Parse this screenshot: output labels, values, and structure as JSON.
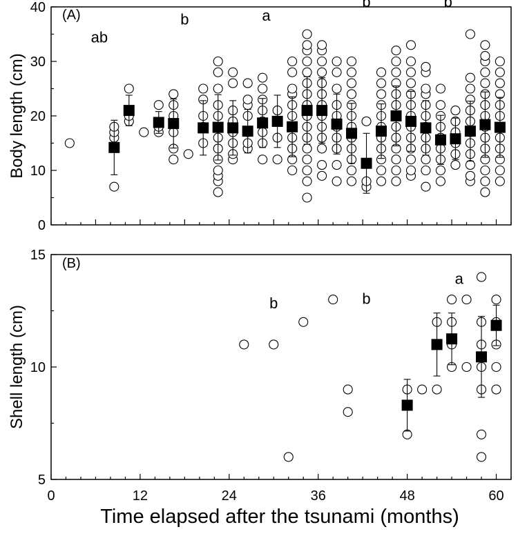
{
  "figure": {
    "xlabel": "Time elapsed after the tsunami (months)"
  },
  "chart_data": [
    {
      "type": "scatter",
      "panel_label": "(A)",
      "ylabel": "Body length (cm)",
      "ylim": [
        0,
        40
      ],
      "yticks": [
        "0",
        "10",
        "20",
        "30",
        "40"
      ],
      "xlim": [
        0,
        60
      ],
      "grid": false,
      "annotations": [
        {
          "text": "ab",
          "x": 6.5,
          "y": 33.5
        },
        {
          "text": "b",
          "x": 18.0,
          "y": 36.8
        },
        {
          "text": "a",
          "x": 29.0,
          "y": 37.5
        },
        {
          "text": "b",
          "x": 42.5,
          "y": 40.0
        },
        {
          "text": "b",
          "x": 53.5,
          "y": 40.0
        }
      ],
      "points": [
        {
          "x": 2.5,
          "y": 15
        },
        {
          "x": 8.5,
          "y": 7
        },
        {
          "x": 8.5,
          "y": 16
        },
        {
          "x": 8.5,
          "y": 17
        },
        {
          "x": 8.5,
          "y": 18
        },
        {
          "x": 10.5,
          "y": 19
        },
        {
          "x": 10.5,
          "y": 20
        },
        {
          "x": 10.5,
          "y": 25
        },
        {
          "x": 12.5,
          "y": 17
        },
        {
          "x": 14.5,
          "y": 17
        },
        {
          "x": 14.5,
          "y": 18
        },
        {
          "x": 14.5,
          "y": 22
        },
        {
          "x": 16.5,
          "y": 12
        },
        {
          "x": 16.5,
          "y": 14
        },
        {
          "x": 16.5,
          "y": 17
        },
        {
          "x": 16.5,
          "y": 20
        },
        {
          "x": 16.5,
          "y": 22
        },
        {
          "x": 16.5,
          "y": 24
        },
        {
          "x": 18.5,
          "y": 13
        },
        {
          "x": 20.5,
          "y": 15
        },
        {
          "x": 20.5,
          "y": 18
        },
        {
          "x": 20.5,
          "y": 20
        },
        {
          "x": 20.5,
          "y": 23
        },
        {
          "x": 20.5,
          "y": 25
        },
        {
          "x": 22.5,
          "y": 6
        },
        {
          "x": 22.5,
          "y": 8
        },
        {
          "x": 22.5,
          "y": 9
        },
        {
          "x": 22.5,
          "y": 10
        },
        {
          "x": 22.5,
          "y": 12
        },
        {
          "x": 22.5,
          "y": 14
        },
        {
          "x": 22.5,
          "y": 16
        },
        {
          "x": 22.5,
          "y": 18
        },
        {
          "x": 22.5,
          "y": 20
        },
        {
          "x": 22.5,
          "y": 22
        },
        {
          "x": 22.5,
          "y": 25
        },
        {
          "x": 22.5,
          "y": 28
        },
        {
          "x": 22.5,
          "y": 30
        },
        {
          "x": 24.5,
          "y": 12
        },
        {
          "x": 24.5,
          "y": 13
        },
        {
          "x": 24.5,
          "y": 15
        },
        {
          "x": 24.5,
          "y": 17
        },
        {
          "x": 24.5,
          "y": 19
        },
        {
          "x": 24.5,
          "y": 21
        },
        {
          "x": 24.5,
          "y": 26
        },
        {
          "x": 24.5,
          "y": 28
        },
        {
          "x": 26.5,
          "y": 14
        },
        {
          "x": 26.5,
          "y": 15
        },
        {
          "x": 26.5,
          "y": 17
        },
        {
          "x": 26.5,
          "y": 20
        },
        {
          "x": 26.5,
          "y": 22
        },
        {
          "x": 26.5,
          "y": 23
        },
        {
          "x": 26.5,
          "y": 26
        },
        {
          "x": 28.5,
          "y": 12
        },
        {
          "x": 28.5,
          "y": 15
        },
        {
          "x": 28.5,
          "y": 17
        },
        {
          "x": 28.5,
          "y": 19
        },
        {
          "x": 28.5,
          "y": 21
        },
        {
          "x": 28.5,
          "y": 23
        },
        {
          "x": 28.5,
          "y": 25
        },
        {
          "x": 28.5,
          "y": 27
        },
        {
          "x": 30.5,
          "y": 12
        },
        {
          "x": 30.5,
          "y": 16
        },
        {
          "x": 30.5,
          "y": 19
        },
        {
          "x": 30.5,
          "y": 21
        },
        {
          "x": 32.5,
          "y": 10
        },
        {
          "x": 32.5,
          "y": 12
        },
        {
          "x": 32.5,
          "y": 14
        },
        {
          "x": 32.5,
          "y": 16
        },
        {
          "x": 32.5,
          "y": 18
        },
        {
          "x": 32.5,
          "y": 20
        },
        {
          "x": 32.5,
          "y": 22
        },
        {
          "x": 32.5,
          "y": 24
        },
        {
          "x": 32.5,
          "y": 25
        },
        {
          "x": 32.5,
          "y": 28
        },
        {
          "x": 32.5,
          "y": 30
        },
        {
          "x": 34.5,
          "y": 5
        },
        {
          "x": 34.5,
          "y": 8
        },
        {
          "x": 34.5,
          "y": 10
        },
        {
          "x": 34.5,
          "y": 12
        },
        {
          "x": 34.5,
          "y": 14
        },
        {
          "x": 34.5,
          "y": 16
        },
        {
          "x": 34.5,
          "y": 18
        },
        {
          "x": 34.5,
          "y": 20
        },
        {
          "x": 34.5,
          "y": 22
        },
        {
          "x": 34.5,
          "y": 24
        },
        {
          "x": 34.5,
          "y": 26
        },
        {
          "x": 34.5,
          "y": 28
        },
        {
          "x": 34.5,
          "y": 30
        },
        {
          "x": 34.5,
          "y": 32
        },
        {
          "x": 34.5,
          "y": 33
        },
        {
          "x": 34.5,
          "y": 35
        },
        {
          "x": 36.5,
          "y": 9
        },
        {
          "x": 36.5,
          "y": 11
        },
        {
          "x": 36.5,
          "y": 14
        },
        {
          "x": 36.5,
          "y": 16
        },
        {
          "x": 36.5,
          "y": 18
        },
        {
          "x": 36.5,
          "y": 20
        },
        {
          "x": 36.5,
          "y": 22
        },
        {
          "x": 36.5,
          "y": 24
        },
        {
          "x": 36.5,
          "y": 26
        },
        {
          "x": 36.5,
          "y": 28
        },
        {
          "x": 36.5,
          "y": 30
        },
        {
          "x": 36.5,
          "y": 32
        },
        {
          "x": 36.5,
          "y": 33
        },
        {
          "x": 38.5,
          "y": 8
        },
        {
          "x": 38.5,
          "y": 11
        },
        {
          "x": 38.5,
          "y": 14
        },
        {
          "x": 38.5,
          "y": 16
        },
        {
          "x": 38.5,
          "y": 18
        },
        {
          "x": 38.5,
          "y": 20
        },
        {
          "x": 38.5,
          "y": 22
        },
        {
          "x": 38.5,
          "y": 25
        },
        {
          "x": 38.5,
          "y": 28
        },
        {
          "x": 38.5,
          "y": 30
        },
        {
          "x": 40.5,
          "y": 8
        },
        {
          "x": 40.5,
          "y": 10
        },
        {
          "x": 40.5,
          "y": 12
        },
        {
          "x": 40.5,
          "y": 14
        },
        {
          "x": 40.5,
          "y": 16
        },
        {
          "x": 40.5,
          "y": 18
        },
        {
          "x": 40.5,
          "y": 20
        },
        {
          "x": 40.5,
          "y": 22
        },
        {
          "x": 40.5,
          "y": 24
        },
        {
          "x": 40.5,
          "y": 26
        },
        {
          "x": 40.5,
          "y": 28
        },
        {
          "x": 40.5,
          "y": 30
        },
        {
          "x": 42.5,
          "y": 7
        },
        {
          "x": 42.5,
          "y": 8
        },
        {
          "x": 42.5,
          "y": 19
        },
        {
          "x": 44.5,
          "y": 8
        },
        {
          "x": 44.5,
          "y": 10
        },
        {
          "x": 44.5,
          "y": 12
        },
        {
          "x": 44.5,
          "y": 14
        },
        {
          "x": 44.5,
          "y": 16
        },
        {
          "x": 44.5,
          "y": 18
        },
        {
          "x": 44.5,
          "y": 20
        },
        {
          "x": 44.5,
          "y": 22
        },
        {
          "x": 44.5,
          "y": 24
        },
        {
          "x": 44.5,
          "y": 26
        },
        {
          "x": 44.5,
          "y": 28
        },
        {
          "x": 46.5,
          "y": 8
        },
        {
          "x": 46.5,
          "y": 10
        },
        {
          "x": 46.5,
          "y": 12
        },
        {
          "x": 46.5,
          "y": 14
        },
        {
          "x": 46.5,
          "y": 16
        },
        {
          "x": 46.5,
          "y": 18
        },
        {
          "x": 46.5,
          "y": 20
        },
        {
          "x": 46.5,
          "y": 22
        },
        {
          "x": 46.5,
          "y": 24
        },
        {
          "x": 46.5,
          "y": 26
        },
        {
          "x": 46.5,
          "y": 28
        },
        {
          "x": 46.5,
          "y": 30
        },
        {
          "x": 46.5,
          "y": 32
        },
        {
          "x": 48.5,
          "y": 9
        },
        {
          "x": 48.5,
          "y": 10
        },
        {
          "x": 48.5,
          "y": 12
        },
        {
          "x": 48.5,
          "y": 14
        },
        {
          "x": 48.5,
          "y": 16
        },
        {
          "x": 48.5,
          "y": 18
        },
        {
          "x": 48.5,
          "y": 20
        },
        {
          "x": 48.5,
          "y": 22
        },
        {
          "x": 48.5,
          "y": 24
        },
        {
          "x": 48.5,
          "y": 26
        },
        {
          "x": 48.5,
          "y": 28
        },
        {
          "x": 48.5,
          "y": 30
        },
        {
          "x": 48.5,
          "y": 33
        },
        {
          "x": 50.5,
          "y": 7
        },
        {
          "x": 50.5,
          "y": 10
        },
        {
          "x": 50.5,
          "y": 12
        },
        {
          "x": 50.5,
          "y": 14
        },
        {
          "x": 50.5,
          "y": 16
        },
        {
          "x": 50.5,
          "y": 18
        },
        {
          "x": 50.5,
          "y": 20
        },
        {
          "x": 50.5,
          "y": 22
        },
        {
          "x": 50.5,
          "y": 24
        },
        {
          "x": 50.5,
          "y": 25
        },
        {
          "x": 50.5,
          "y": 28
        },
        {
          "x": 50.5,
          "y": 29
        },
        {
          "x": 52.5,
          "y": 8
        },
        {
          "x": 52.5,
          "y": 10
        },
        {
          "x": 52.5,
          "y": 12
        },
        {
          "x": 52.5,
          "y": 14
        },
        {
          "x": 52.5,
          "y": 16
        },
        {
          "x": 52.5,
          "y": 18
        },
        {
          "x": 52.5,
          "y": 20
        },
        {
          "x": 52.5,
          "y": 22
        },
        {
          "x": 52.5,
          "y": 25
        },
        {
          "x": 54.5,
          "y": 11
        },
        {
          "x": 54.5,
          "y": 13
        },
        {
          "x": 54.5,
          "y": 15
        },
        {
          "x": 54.5,
          "y": 17
        },
        {
          "x": 54.5,
          "y": 19
        },
        {
          "x": 54.5,
          "y": 21
        },
        {
          "x": 56.5,
          "y": 8
        },
        {
          "x": 56.5,
          "y": 9
        },
        {
          "x": 56.5,
          "y": 11
        },
        {
          "x": 56.5,
          "y": 13
        },
        {
          "x": 56.5,
          "y": 15
        },
        {
          "x": 56.5,
          "y": 17
        },
        {
          "x": 56.5,
          "y": 19
        },
        {
          "x": 56.5,
          "y": 21
        },
        {
          "x": 56.5,
          "y": 23
        },
        {
          "x": 56.5,
          "y": 25
        },
        {
          "x": 56.5,
          "y": 27
        },
        {
          "x": 56.5,
          "y": 35
        },
        {
          "x": 58.5,
          "y": 6
        },
        {
          "x": 58.5,
          "y": 8
        },
        {
          "x": 58.5,
          "y": 10
        },
        {
          "x": 58.5,
          "y": 12
        },
        {
          "x": 58.5,
          "y": 14
        },
        {
          "x": 58.5,
          "y": 16
        },
        {
          "x": 58.5,
          "y": 18
        },
        {
          "x": 58.5,
          "y": 20
        },
        {
          "x": 58.5,
          "y": 22
        },
        {
          "x": 58.5,
          "y": 24
        },
        {
          "x": 58.5,
          "y": 26
        },
        {
          "x": 58.5,
          "y": 28
        },
        {
          "x": 58.5,
          "y": 30
        },
        {
          "x": 58.5,
          "y": 31
        },
        {
          "x": 58.5,
          "y": 33
        },
        {
          "x": 60.5,
          "y": 8
        },
        {
          "x": 60.5,
          "y": 10
        },
        {
          "x": 60.5,
          "y": 12
        },
        {
          "x": 60.5,
          "y": 14
        },
        {
          "x": 60.5,
          "y": 16
        },
        {
          "x": 60.5,
          "y": 18
        },
        {
          "x": 60.5,
          "y": 20
        },
        {
          "x": 60.5,
          "y": 22
        },
        {
          "x": 60.5,
          "y": 24
        },
        {
          "x": 60.5,
          "y": 26
        },
        {
          "x": 60.5,
          "y": 28
        },
        {
          "x": 60.5,
          "y": 30
        }
      ],
      "means": [
        {
          "x": 8.5,
          "y": 14.2,
          "err": 5.0
        },
        {
          "x": 10.5,
          "y": 21.0,
          "err": 2.8
        },
        {
          "x": 14.5,
          "y": 18.8,
          "err": 2.0
        },
        {
          "x": 16.5,
          "y": 18.6,
          "err": 4.5
        },
        {
          "x": 20.5,
          "y": 17.8,
          "err": 5.0
        },
        {
          "x": 22.5,
          "y": 17.9,
          "err": 6.0
        },
        {
          "x": 24.5,
          "y": 17.8,
          "err": 5.0
        },
        {
          "x": 26.5,
          "y": 17.2,
          "err": 4.0
        },
        {
          "x": 28.5,
          "y": 18.7,
          "err": 4.5
        },
        {
          "x": 30.5,
          "y": 19.0,
          "err": 4.8
        },
        {
          "x": 32.5,
          "y": 18.0,
          "err": 5.5
        },
        {
          "x": 34.5,
          "y": 21.0,
          "err": 6.2
        },
        {
          "x": 36.5,
          "y": 21.0,
          "err": 6.0
        },
        {
          "x": 38.5,
          "y": 18.5,
          "err": 5.5
        },
        {
          "x": 40.5,
          "y": 16.8,
          "err": 5.5
        },
        {
          "x": 42.5,
          "y": 11.3,
          "err": 5.5
        },
        {
          "x": 44.5,
          "y": 17.2,
          "err": 5.0
        },
        {
          "x": 46.5,
          "y": 20.0,
          "err": 5.5
        },
        {
          "x": 48.5,
          "y": 19.0,
          "err": 5.5
        },
        {
          "x": 50.5,
          "y": 17.8,
          "err": 5.0
        },
        {
          "x": 52.5,
          "y": 15.6,
          "err": 4.5
        },
        {
          "x": 54.5,
          "y": 15.8,
          "err": 3.8
        },
        {
          "x": 56.5,
          "y": 17.2,
          "err": 5.5
        },
        {
          "x": 58.5,
          "y": 18.4,
          "err": 6.0
        },
        {
          "x": 60.5,
          "y": 17.9,
          "err": 5.5
        }
      ]
    },
    {
      "type": "scatter",
      "panel_label": "(B)",
      "ylabel": "Shell length (cm)",
      "ylim": [
        5,
        15
      ],
      "yticks": [
        "5",
        "10",
        "15"
      ],
      "xlim": [
        0,
        60
      ],
      "xticks": [
        "0",
        "12",
        "24",
        "36",
        "48",
        "60"
      ],
      "grid": false,
      "annotations": [
        {
          "text": "b",
          "x": 30.0,
          "y": 12.6
        },
        {
          "text": "b",
          "x": 42.5,
          "y": 12.8
        },
        {
          "text": "a",
          "x": 55.0,
          "y": 13.7
        }
      ],
      "points": [
        {
          "x": 26,
          "y": 11
        },
        {
          "x": 30,
          "y": 11
        },
        {
          "x": 32,
          "y": 6
        },
        {
          "x": 34,
          "y": 12
        },
        {
          "x": 38,
          "y": 13
        },
        {
          "x": 40,
          "y": 8
        },
        {
          "x": 40,
          "y": 9
        },
        {
          "x": 48,
          "y": 7
        },
        {
          "x": 48,
          "y": 9
        },
        {
          "x": 50,
          "y": 9
        },
        {
          "x": 52,
          "y": 9
        },
        {
          "x": 52,
          "y": 11
        },
        {
          "x": 52,
          "y": 12
        },
        {
          "x": 54,
          "y": 10
        },
        {
          "x": 54,
          "y": 11
        },
        {
          "x": 54,
          "y": 12
        },
        {
          "x": 54,
          "y": 13
        },
        {
          "x": 56,
          "y": 10
        },
        {
          "x": 56,
          "y": 13
        },
        {
          "x": 58,
          "y": 6
        },
        {
          "x": 58,
          "y": 7
        },
        {
          "x": 58,
          "y": 9
        },
        {
          "x": 58,
          "y": 10
        },
        {
          "x": 58,
          "y": 11
        },
        {
          "x": 58,
          "y": 12
        },
        {
          "x": 58,
          "y": 14
        },
        {
          "x": 60,
          "y": 9
        },
        {
          "x": 60,
          "y": 10
        },
        {
          "x": 60,
          "y": 11
        },
        {
          "x": 60,
          "y": 12
        },
        {
          "x": 60,
          "y": 13
        }
      ],
      "means": [
        {
          "x": 48,
          "y": 8.3,
          "err": 1.15
        },
        {
          "x": 52,
          "y": 11.0,
          "err": 1.4
        },
        {
          "x": 54,
          "y": 11.25,
          "err": 1.15
        },
        {
          "x": 58,
          "y": 10.45,
          "err": 1.8
        },
        {
          "x": 60,
          "y": 11.85,
          "err": 0.9
        }
      ]
    }
  ]
}
